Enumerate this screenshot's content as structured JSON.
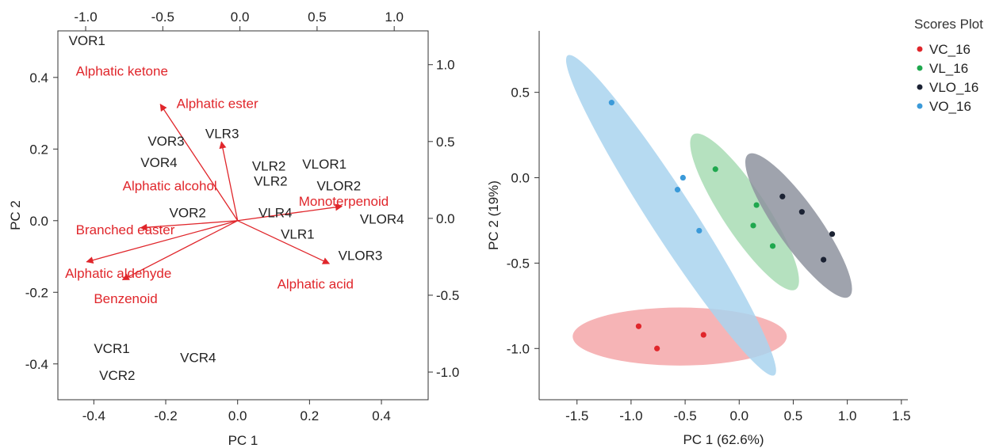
{
  "chart_data": [
    {
      "type": "scatter",
      "subtype": "biplot",
      "xlabel": "PC 1",
      "ylabel": "PC 2",
      "xlim": [
        -0.5,
        0.53
      ],
      "ylim": [
        -0.5,
        0.53
      ],
      "x_ticks": [
        -0.4,
        -0.2,
        0.0,
        0.2,
        0.4
      ],
      "x_tick_labels": [
        "-0.4",
        "-0.2",
        "0.0",
        "0.2",
        "0.4"
      ],
      "y_ticks": [
        -0.4,
        -0.2,
        0.0,
        0.2,
        0.4
      ],
      "y_tick_labels": [
        "-0.4",
        "-0.2",
        "0.0",
        "0.2",
        "0.4"
      ],
      "top_axis": {
        "range": [
          -1.18,
          1.22
        ],
        "ticks": [
          -1.0,
          -0.5,
          0.0,
          0.5,
          1.0
        ],
        "tick_labels": [
          "-1.0",
          "-0.5",
          "0.0",
          "0.5",
          "1.0"
        ]
      },
      "right_axis": {
        "range": [
          -1.18,
          1.22
        ],
        "ticks": [
          1.0,
          0.5,
          0.0,
          -0.5,
          -1.0
        ],
        "tick_labels": [
          "1.0",
          "0.5",
          "0.0",
          "-0.5",
          "-1.0"
        ]
      },
      "observations": [
        {
          "label": "VOR1",
          "x": -0.47,
          "y": 0.49
        },
        {
          "label": "VOR3",
          "x": -0.25,
          "y": 0.21
        },
        {
          "label": "VOR4",
          "x": -0.27,
          "y": 0.15
        },
        {
          "label": "VOR2",
          "x": -0.19,
          "y": 0.01
        },
        {
          "label": "VLR3",
          "x": -0.09,
          "y": 0.23
        },
        {
          "label": "VLR2",
          "x": 0.04,
          "y": 0.14
        },
        {
          "label": "VLR2",
          "x": 0.045,
          "y": 0.098
        },
        {
          "label": "VLR4",
          "x": 0.058,
          "y": 0.01
        },
        {
          "label": "VLR1",
          "x": 0.12,
          "y": -0.05
        },
        {
          "label": "VLOR1",
          "x": 0.18,
          "y": 0.145
        },
        {
          "label": "VLOR2",
          "x": 0.22,
          "y": 0.085
        },
        {
          "label": "VLOR4",
          "x": 0.34,
          "y": -0.008
        },
        {
          "label": "VLOR3",
          "x": 0.28,
          "y": -0.11
        },
        {
          "label": "VCR1",
          "x": -0.4,
          "y": -0.37
        },
        {
          "label": "VCR4",
          "x": -0.16,
          "y": -0.395
        },
        {
          "label": "VCR2",
          "x": -0.385,
          "y": -0.445
        }
      ],
      "loadings": [
        {
          "label": "Alphatic ketone",
          "x": -0.45,
          "y": 0.405,
          "tip": [
            -0.215,
            0.325
          ]
        },
        {
          "label": "Alphatic ester",
          "x": -0.17,
          "y": 0.315,
          "tip": [
            -0.045,
            0.22
          ]
        },
        {
          "label": "Alphatic alcohol",
          "x": -0.32,
          "y": 0.085,
          "tip": null
        },
        {
          "label": "Monoterpenoid",
          "x": 0.17,
          "y": 0.042,
          "tip": [
            0.29,
            0.04
          ]
        },
        {
          "label": "Branched easter",
          "x": -0.45,
          "y": -0.038,
          "tip": [
            -0.27,
            -0.02
          ]
        },
        {
          "label": "Alphatic aldehyde",
          "x": -0.48,
          "y": -0.16,
          "tip": [
            -0.42,
            -0.115
          ]
        },
        {
          "label": "Benzenoid",
          "x": -0.4,
          "y": -0.23,
          "tip": [
            -0.32,
            -0.165
          ]
        },
        {
          "label": "Alphatic acid",
          "x": 0.11,
          "y": -0.19,
          "tip": [
            0.255,
            -0.12
          ]
        }
      ]
    },
    {
      "type": "scatter",
      "xlabel": "PC 1 (62.6%)",
      "ylabel": "PC 2 (19%)",
      "xlim": [
        -1.85,
        1.56
      ],
      "ylim": [
        -1.3,
        0.86
      ],
      "x_ticks": [
        -1.5,
        -1.0,
        -0.5,
        0.0,
        0.5,
        1.0,
        1.5
      ],
      "x_tick_labels": [
        "-1.5",
        "-1.0",
        "-0.5",
        "0.0",
        "0.5",
        "1.0",
        "1.5"
      ],
      "y_ticks": [
        0.5,
        0.0,
        -0.5,
        -1.0
      ],
      "y_tick_labels": [
        "0.5",
        "0.0",
        "-0.5",
        "-1.0"
      ],
      "legend_title": "Scores Plot",
      "legend_position": "top-right",
      "series": [
        {
          "name": "VC_16",
          "color": "#e0262b",
          "ellipse_color": "#f4a7a9",
          "points": [
            [
              -0.93,
              -0.87
            ],
            [
              -0.76,
              -1.0
            ],
            [
              -0.33,
              -0.92
            ]
          ],
          "ellipse": {
            "cx": -0.55,
            "cy": -0.93,
            "rx": 0.99,
            "ry": 0.17,
            "angle": 0
          }
        },
        {
          "name": "VL_16",
          "color": "#1fa84e",
          "ellipse_color": "#a8dcb4",
          "points": [
            [
              -0.22,
              0.05
            ],
            [
              0.16,
              -0.16
            ],
            [
              0.13,
              -0.28
            ],
            [
              0.31,
              -0.4
            ]
          ],
          "ellipse": {
            "cx": 0.05,
            "cy": -0.2,
            "rx": 0.66,
            "ry": 0.17,
            "angle": -42
          }
        },
        {
          "name": "VLO_16",
          "color": "#1b2233",
          "ellipse_color": "#8e939f",
          "points": [
            [
              0.4,
              -0.11
            ],
            [
              0.58,
              -0.2
            ],
            [
              0.86,
              -0.33
            ],
            [
              0.78,
              -0.48
            ]
          ],
          "ellipse": {
            "cx": 0.55,
            "cy": -0.28,
            "rx": 0.63,
            "ry": 0.16,
            "angle": -40
          }
        },
        {
          "name": "VO_16",
          "color": "#3b9ad9",
          "ellipse_color": "#a9d3ef",
          "points": [
            [
              -1.18,
              0.44
            ],
            [
              -0.52,
              0.0
            ],
            [
              -0.57,
              -0.07
            ],
            [
              -0.37,
              -0.31
            ]
          ],
          "ellipse": {
            "cx": -0.63,
            "cy": -0.22,
            "rx": 1.34,
            "ry": 0.17,
            "angle": -44
          }
        }
      ]
    }
  ]
}
